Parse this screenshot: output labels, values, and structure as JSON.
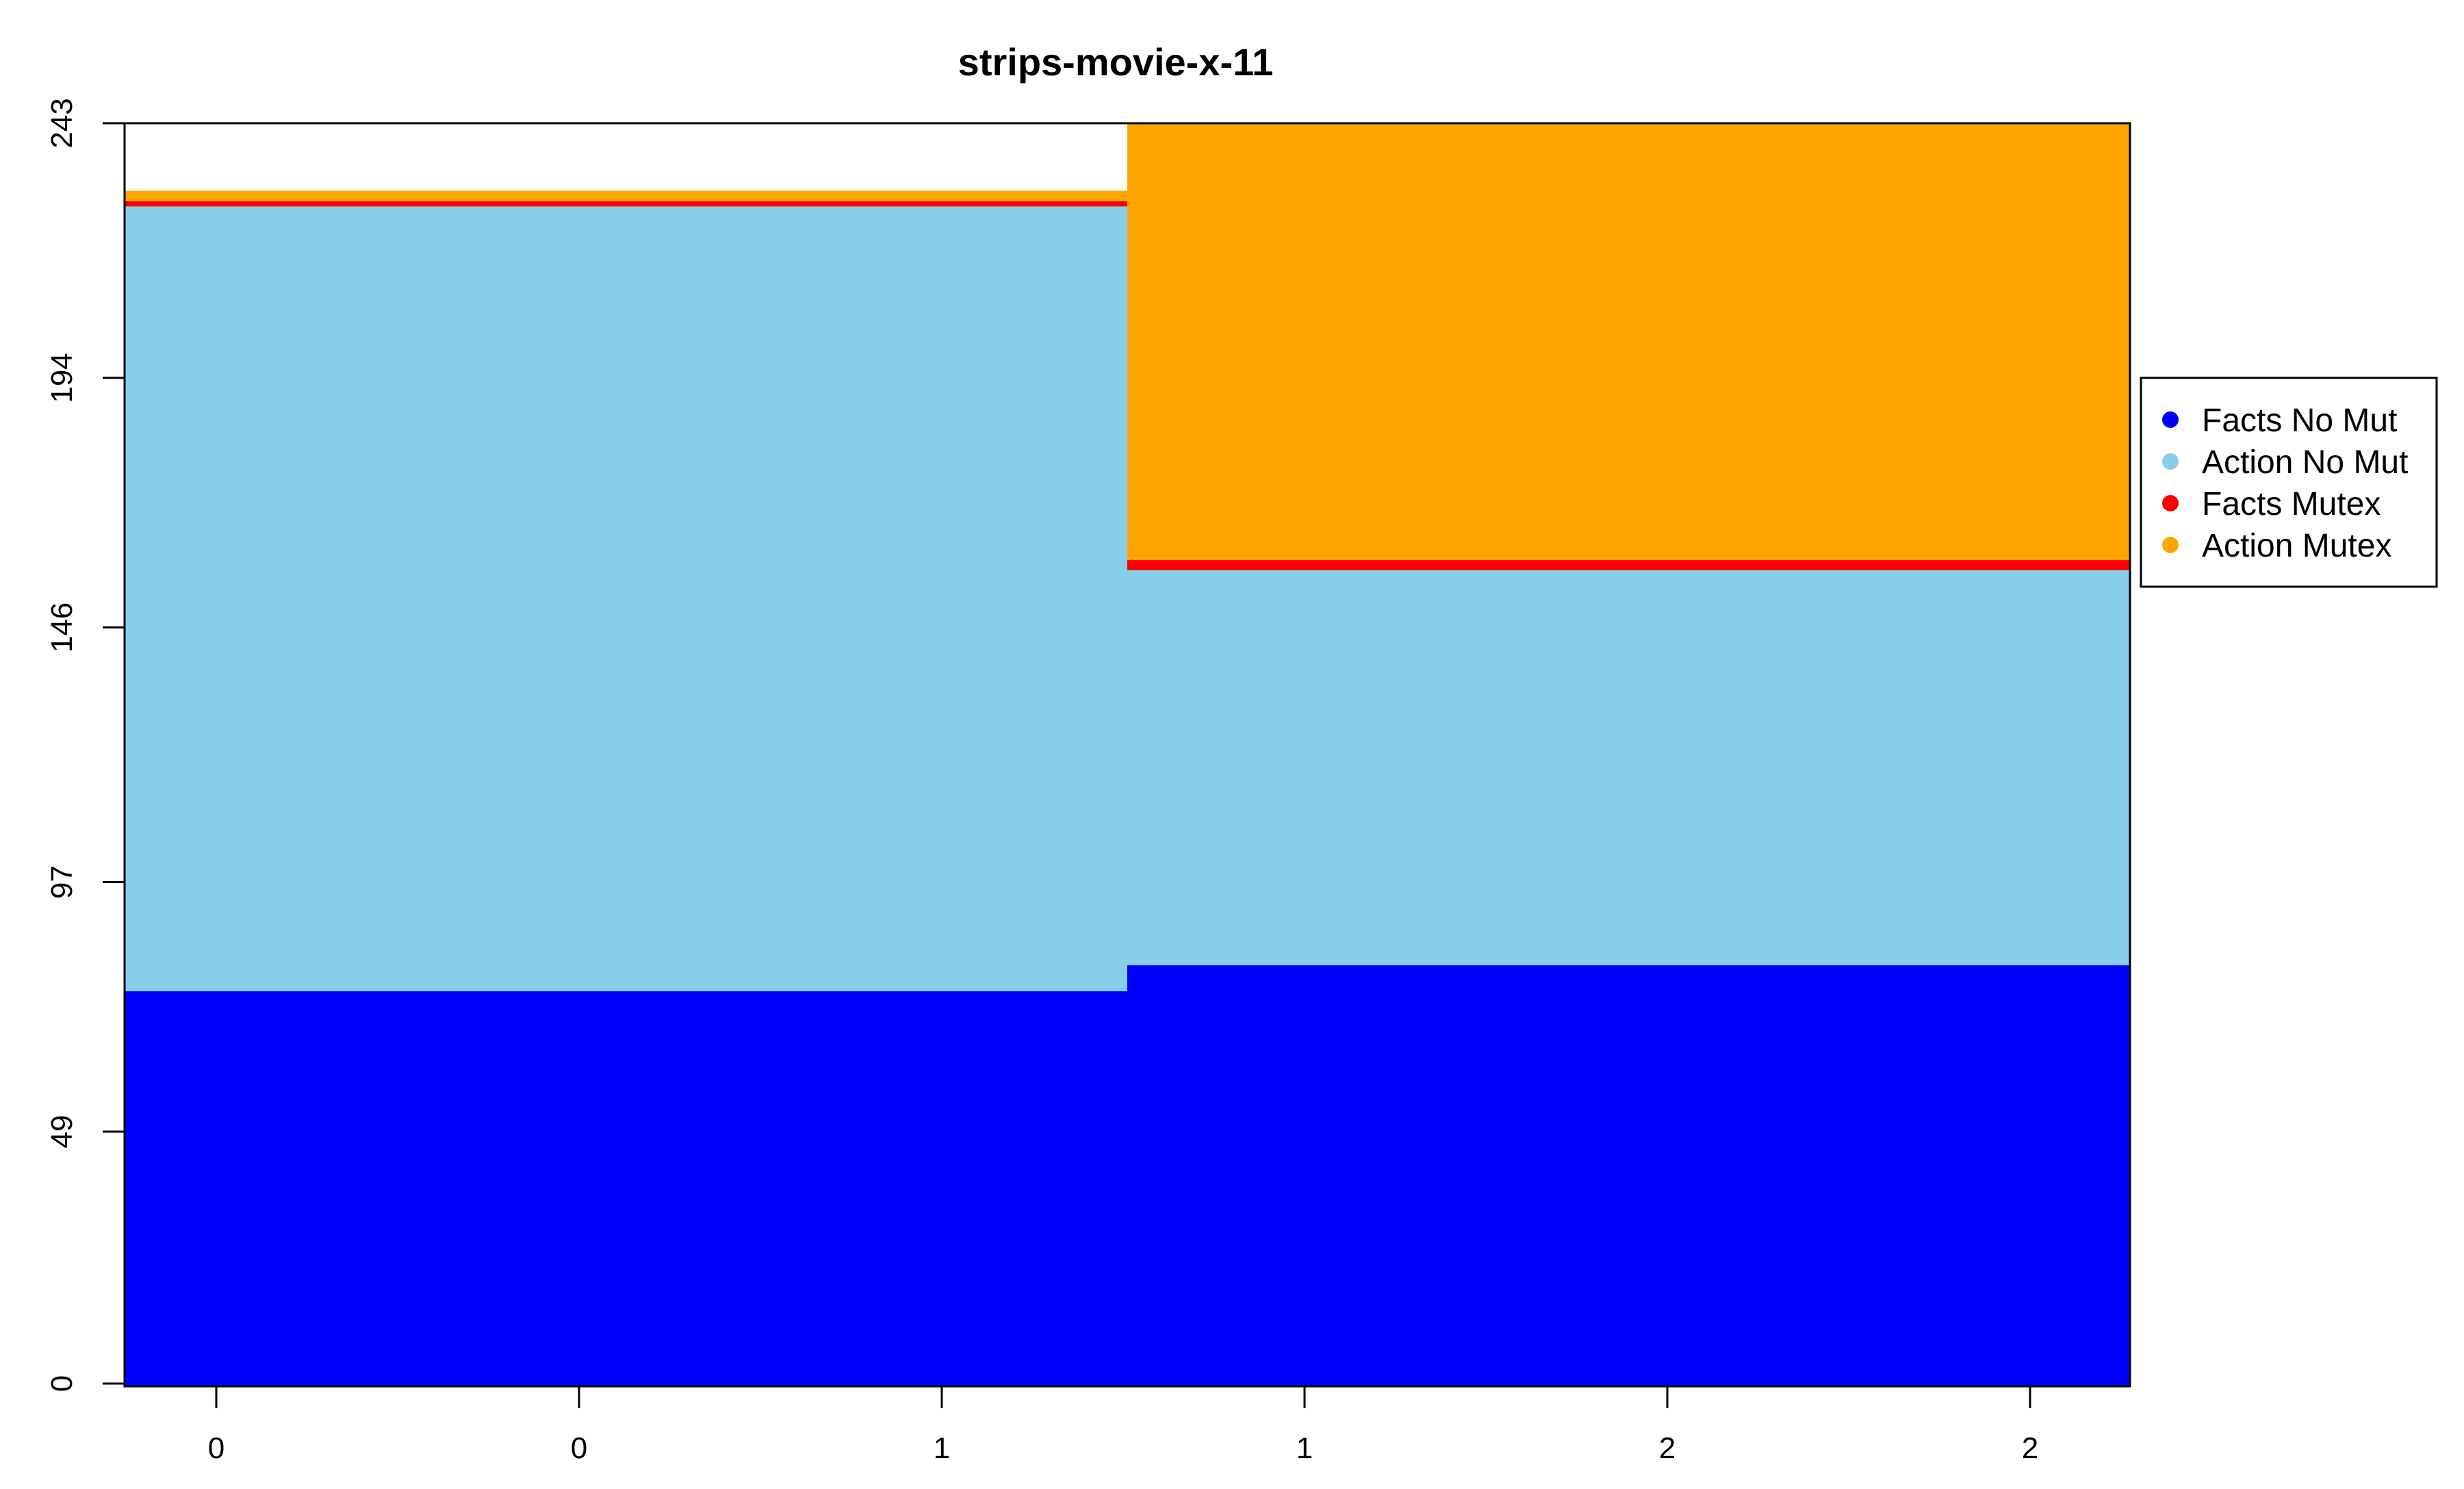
{
  "chart_data": {
    "type": "area",
    "title": "strips-movie-x-11",
    "xlabel": "",
    "ylabel": "",
    "stacked": true,
    "step": true,
    "ylim": [
      0,
      243
    ],
    "y_ticks": [
      "0",
      "49",
      "97",
      "146",
      "194",
      "243"
    ],
    "x_tick_labels": [
      "0",
      "0",
      "1",
      "1",
      "2",
      "2"
    ],
    "segments": [
      {
        "x_range": [
          "0",
          "1"
        ],
        "values": {
          "Facts No Mut": 76,
          "Action No Mut": 151,
          "Facts Mutex": 1,
          "Action Mutex": 2
        }
      },
      {
        "x_range": [
          "1",
          "2"
        ],
        "values": {
          "Facts No Mut": 81,
          "Action No Mut": 76,
          "Facts Mutex": 2,
          "Action Mutex": 84
        }
      }
    ],
    "series": [
      {
        "name": "Facts No Mut",
        "color": "#0000FF"
      },
      {
        "name": "Action No Mut",
        "color": "#87CEEB"
      },
      {
        "name": "Facts Mutex",
        "color": "#FF0000"
      },
      {
        "name": "Action Mutex",
        "color": "#FFA500"
      }
    ],
    "legend_position": "right",
    "grid": false
  }
}
